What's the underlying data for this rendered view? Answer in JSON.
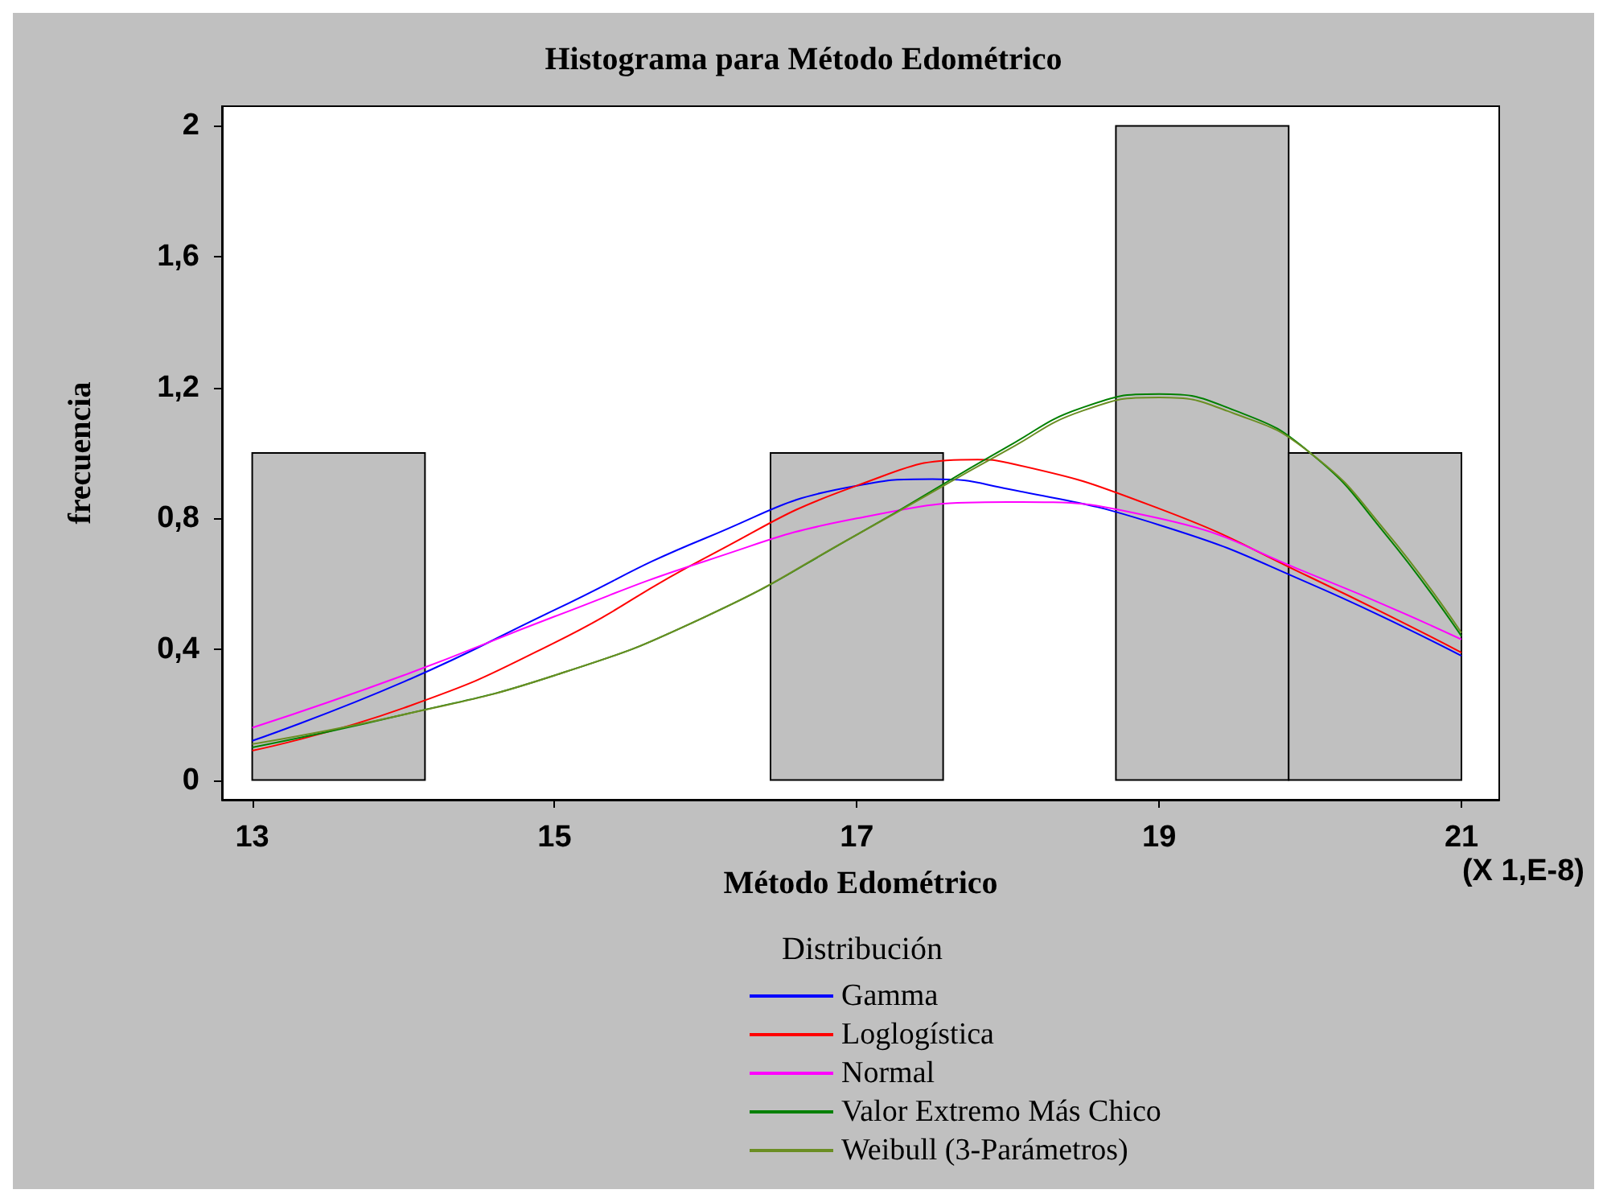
{
  "chart_data": {
    "type": "histogram",
    "title": "Histograma para Método Edométrico",
    "xlabel": "Método Edométrico",
    "ylabel": "frecuencia",
    "legend_title": "Distribución",
    "annotations": [
      "(X 1,E-8)"
    ],
    "bins": [
      13,
      14.143,
      15.286,
      16.429,
      17.571,
      18.714,
      19.857,
      21
    ],
    "values": [
      1,
      0,
      0,
      1,
      0,
      2,
      1
    ],
    "color": "#c0c0c0",
    "xlim": [
      12.8,
      21.25
    ],
    "xticks": [
      13,
      15,
      17,
      19,
      21
    ],
    "ylim": [
      -0.06,
      2.06
    ],
    "yticks": [
      0,
      {
        "value": 0.4,
        "label": "0,4"
      },
      {
        "value": 0.8,
        "label": "0,8"
      },
      {
        "value": 1.2,
        "label": "1,2"
      },
      {
        "value": 1.6,
        "label": "1,6"
      },
      2
    ],
    "grid": false,
    "legend": "bottom",
    "series": [
      {
        "name": "Gamma",
        "type": "line",
        "color": "#0000ff",
        "x": [
          13,
          14,
          15,
          16,
          17,
          17.5,
          18,
          19,
          20,
          21
        ],
        "values": [
          0.12,
          0.3,
          0.52,
          0.74,
          0.9,
          0.92,
          0.89,
          0.78,
          0.6,
          0.38
        ]
      },
      {
        "name": "Loglogística",
        "type": "line",
        "color": "#ff0000",
        "x": [
          13,
          14,
          15,
          16,
          17,
          17.8,
          18,
          19,
          20,
          21
        ],
        "values": [
          0.09,
          0.22,
          0.42,
          0.68,
          0.9,
          0.98,
          0.97,
          0.83,
          0.62,
          0.39
        ]
      },
      {
        "name": "Normal",
        "type": "line",
        "color": "#ff00ff",
        "x": [
          13,
          14,
          15,
          16,
          17,
          18,
          19,
          20,
          21
        ],
        "values": [
          0.16,
          0.32,
          0.5,
          0.67,
          0.8,
          0.85,
          0.8,
          0.63,
          0.43
        ]
      },
      {
        "name": "Valor Extremo Más Chico",
        "type": "line",
        "color": "#008000",
        "x": [
          13,
          14,
          15,
          16,
          17,
          18,
          18.5,
          19,
          19.5,
          20,
          20.5,
          21
        ],
        "values": [
          0.1,
          0.2,
          0.32,
          0.5,
          0.75,
          1.02,
          1.14,
          1.18,
          1.13,
          1.0,
          0.75,
          0.44
        ]
      },
      {
        "name": "Weibull (3-Parámetros)",
        "type": "line",
        "color": "#6b8e23",
        "x": [
          13,
          14,
          15,
          16,
          17,
          18,
          18.5,
          19,
          19.5,
          20,
          20.5,
          21
        ],
        "values": [
          0.11,
          0.2,
          0.32,
          0.5,
          0.75,
          1.01,
          1.13,
          1.17,
          1.12,
          1.0,
          0.76,
          0.45
        ]
      }
    ]
  }
}
